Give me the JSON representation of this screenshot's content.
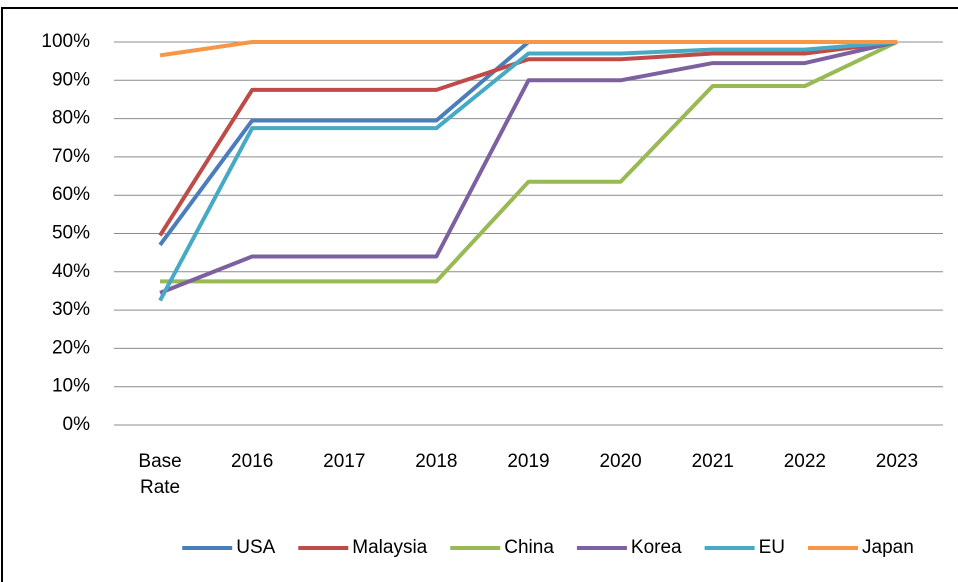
{
  "chart_data": {
    "type": "line",
    "categories": [
      "Base Rate",
      "2016",
      "2017",
      "2018",
      "2019",
      "2020",
      "2021",
      "2022",
      "2023"
    ],
    "series": [
      {
        "name": "USA",
        "color": "#4a7ebb",
        "values": [
          47,
          79.5,
          79.5,
          79.5,
          100,
          100,
          100,
          100,
          100
        ]
      },
      {
        "name": "Malaysia",
        "color": "#be4b48",
        "values": [
          49.5,
          87.5,
          87.5,
          87.5,
          95.5,
          95.5,
          97,
          97,
          100
        ]
      },
      {
        "name": "China",
        "color": "#98b954",
        "values": [
          37.5,
          37.5,
          37.5,
          37.5,
          63.5,
          63.5,
          88.5,
          88.5,
          100
        ]
      },
      {
        "name": "Korea",
        "color": "#7d60a0",
        "values": [
          34.5,
          44,
          44,
          44,
          90,
          90,
          94.5,
          94.5,
          100
        ]
      },
      {
        "name": "EU",
        "color": "#46aac5",
        "values": [
          32.5,
          77.5,
          77.5,
          77.5,
          97,
          97,
          98,
          98,
          100
        ]
      },
      {
        "name": "Japan",
        "color": "#f79646",
        "values": [
          96.5,
          100,
          100,
          100,
          100,
          100,
          100,
          100,
          100
        ]
      }
    ],
    "ylim": [
      0,
      100
    ],
    "yticks": [
      {
        "value": 0,
        "label": "0%"
      },
      {
        "value": 10,
        "label": "10%"
      },
      {
        "value": 20,
        "label": "20%"
      },
      {
        "value": 30,
        "label": "30%"
      },
      {
        "value": 40,
        "label": "40%"
      },
      {
        "value": 50,
        "label": "50%"
      },
      {
        "value": 60,
        "label": "60%"
      },
      {
        "value": 70,
        "label": "70%"
      },
      {
        "value": 80,
        "label": "80%"
      },
      {
        "value": 90,
        "label": "90%"
      },
      {
        "value": 100,
        "label": "100%"
      }
    ],
    "grid": true,
    "legend": "bottom"
  }
}
